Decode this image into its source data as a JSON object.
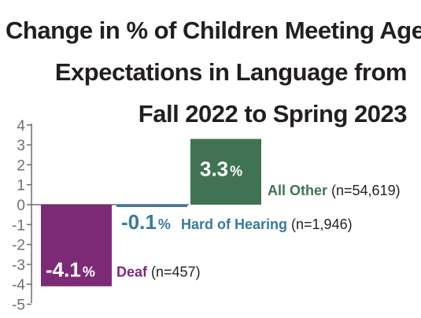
{
  "chart_data": {
    "type": "bar",
    "title_lines": [
      "Change in % of Children Meeting Age",
      "Expectations in Language from",
      "Fall 2022 to Spring 2023"
    ],
    "ylim": [
      -5,
      4
    ],
    "yticks": [
      "4",
      "3",
      "2",
      "1",
      "0",
      "-1",
      "-2",
      "-3",
      "-4",
      "-5"
    ],
    "grid": false,
    "categories": [
      "Deaf",
      "Hard of Hearing",
      "All Other"
    ],
    "values": [
      -4.1,
      -0.1,
      3.3
    ],
    "value_labels": [
      "-4.1",
      "-0.1",
      "3.3"
    ],
    "value_unit": "%",
    "n_labels": [
      "(n=457)",
      "(n=1,946)",
      "(n=54,619)"
    ],
    "colors": [
      "#7d2a76",
      "#3a7aa0",
      "#3f7352"
    ]
  }
}
